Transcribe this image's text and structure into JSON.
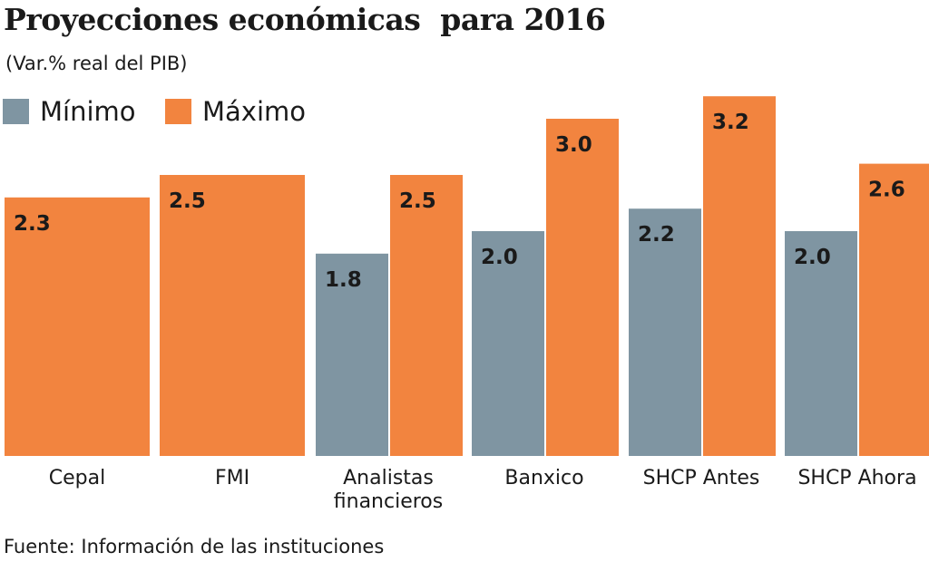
{
  "chart_data": {
    "type": "bar",
    "title": "Proyecciones económicas  para 2016",
    "subtitle": "(Var.% real del PIB)",
    "categories": [
      "Cepal",
      "FMI",
      "Analistas financieros",
      "Banxico",
      "SHCP Antes",
      "SHCP Ahora"
    ],
    "series": [
      {
        "name": "Mínimo",
        "color": "#7f95a2",
        "values": [
          null,
          null,
          1.8,
          2.0,
          2.2,
          2.0
        ]
      },
      {
        "name": "Máximo",
        "color": "#f2843f",
        "values": [
          2.3,
          2.5,
          2.5,
          3.0,
          3.2,
          2.6
        ]
      }
    ],
    "ylim": [
      0,
      3.2
    ],
    "grid": false,
    "legend": "top-left",
    "source": "Fuente: Información de las instituciones"
  }
}
